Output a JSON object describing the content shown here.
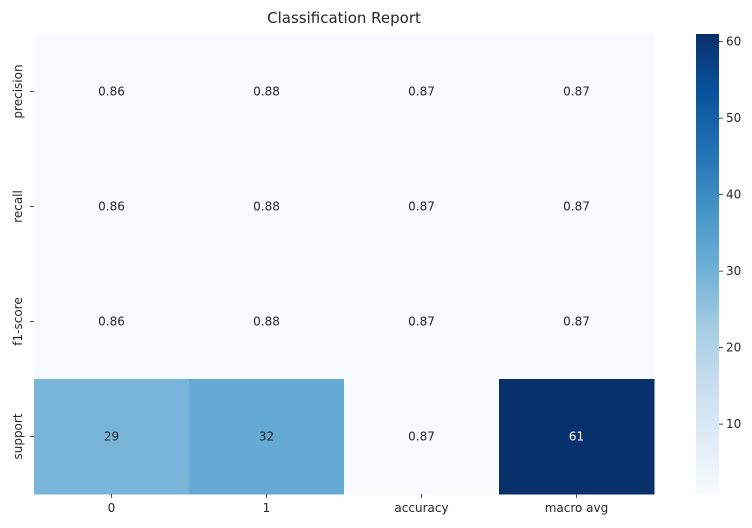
{
  "chart_data": {
    "type": "heatmap",
    "title": "Classification Report",
    "xlabel": "",
    "ylabel": "",
    "x_categories": [
      "0",
      "1",
      "accuracy",
      "macro avg"
    ],
    "y_categories": [
      "precision",
      "recall",
      "f1-score",
      "support"
    ],
    "values": [
      [
        0.86,
        0.88,
        0.87,
        0.87
      ],
      [
        0.86,
        0.88,
        0.87,
        0.87
      ],
      [
        0.86,
        0.88,
        0.87,
        0.87
      ],
      [
        29,
        32,
        0.87,
        61
      ]
    ],
    "cell_labels": [
      [
        "0.86",
        "0.88",
        "0.87",
        "0.87"
      ],
      [
        "0.86",
        "0.88",
        "0.87",
        "0.87"
      ],
      [
        "0.86",
        "0.88",
        "0.87",
        "0.87"
      ],
      [
        "29",
        "32",
        "0.87",
        "61"
      ]
    ],
    "colormap": "Blues",
    "colormap_stops": [
      "#f7fbff",
      "#deebf7",
      "#c6dbef",
      "#9ecae1",
      "#6baed6",
      "#4292c6",
      "#2171b5",
      "#08519c",
      "#08306b"
    ],
    "colorbar": {
      "range": [
        0.86,
        61
      ],
      "ticks": [
        10,
        20,
        30,
        40,
        50,
        60
      ],
      "tick_labels": [
        "10",
        "20",
        "30",
        "40",
        "50",
        "60"
      ]
    }
  }
}
